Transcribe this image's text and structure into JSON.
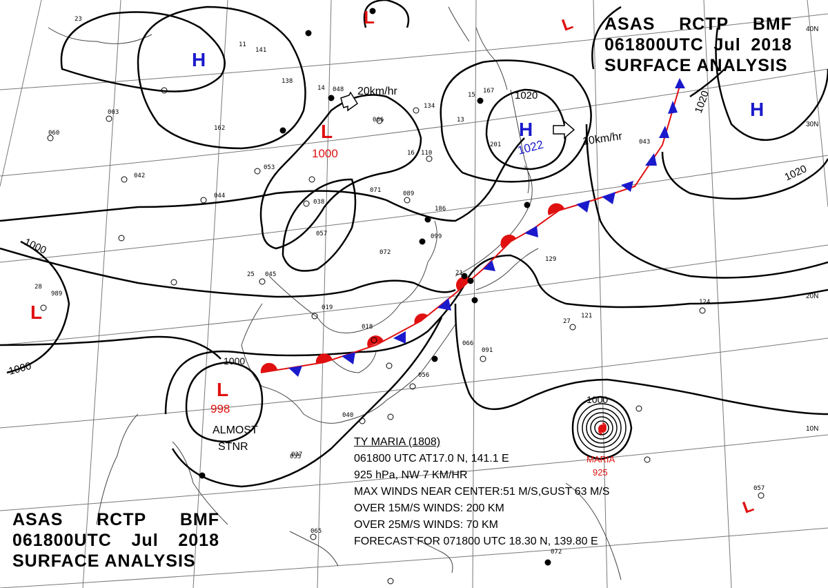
{
  "header_top_right": {
    "line1": [
      "ASAS",
      "RCTP",
      "BMF"
    ],
    "line2": [
      "061800UTC",
      "Jul",
      "2018"
    ],
    "line3": "SURFACE ANALYSIS"
  },
  "header_bottom_left": {
    "line1": [
      "ASAS",
      "RCTP",
      "BMF"
    ],
    "line2": [
      "061800UTC",
      "Jul",
      "2018"
    ],
    "line3": "SURFACE ANALYSIS"
  },
  "latitude_labels": [
    "40N",
    "30N",
    "20N",
    "10N"
  ],
  "isobar_labels": [
    "1000",
    "1000",
    "1000",
    "1020",
    "1020",
    "1020",
    "1000"
  ],
  "pressure_systems": [
    {
      "type": "H",
      "color": "#1a1acc"
    },
    {
      "type": "H",
      "color": "#1a1acc",
      "value": "1022"
    },
    {
      "type": "H",
      "color": "#1a1acc"
    },
    {
      "type": "L",
      "color": "#e01010",
      "value": "1000"
    },
    {
      "type": "L",
      "color": "#e01010",
      "value": "998"
    },
    {
      "type": "L",
      "color": "#e01010"
    },
    {
      "type": "L",
      "color": "#e01010"
    },
    {
      "type": "L",
      "color": "#e01010"
    },
    {
      "type": "L",
      "color": "#e01010"
    }
  ],
  "movement_labels": [
    "20km/hr",
    "10km/hr"
  ],
  "stationary_note": [
    "ALMOST",
    "STNR"
  ],
  "typhoon": {
    "name_label": "MARIA",
    "pressure_label": "925",
    "outer_isobar": "1000",
    "info": {
      "title": "TY MARIA (1808)",
      "line2": "061800 UTC AT17.0 N, 141.1 E",
      "line3": "925 hPa, NW 7 KM/HR",
      "line4": "MAX WINDS NEAR CENTER:51 M/S,GUST 63 M/S",
      "line5": "OVER 15M/S WINDS: 200 KM",
      "line6": "OVER 25M/S WINDS: 70 KM",
      "line7": "FORECAST FOR 071800 UTC 18.30 N, 139.80 E"
    }
  },
  "station_samples": [
    "23",
    "11",
    "141",
    "162",
    "138",
    "14",
    "048",
    "15",
    "167",
    "134",
    "066",
    "13",
    "201",
    "16",
    "110",
    "071",
    "089",
    "053",
    "042",
    "044",
    "038",
    "057",
    "186",
    "099",
    "072",
    "25",
    "045",
    "019",
    "018",
    "27",
    "066",
    "091",
    "121",
    "124",
    "129",
    "056",
    "040",
    "037",
    "065",
    "072",
    "057",
    "989",
    "28",
    "21",
    "043",
    "060",
    "003",
    "035"
  ],
  "colors": {
    "front_warm": "#e01010",
    "front_cold": "#1a1acc",
    "isobar": "#000000",
    "geography": "#444444",
    "grid": "#777777"
  }
}
